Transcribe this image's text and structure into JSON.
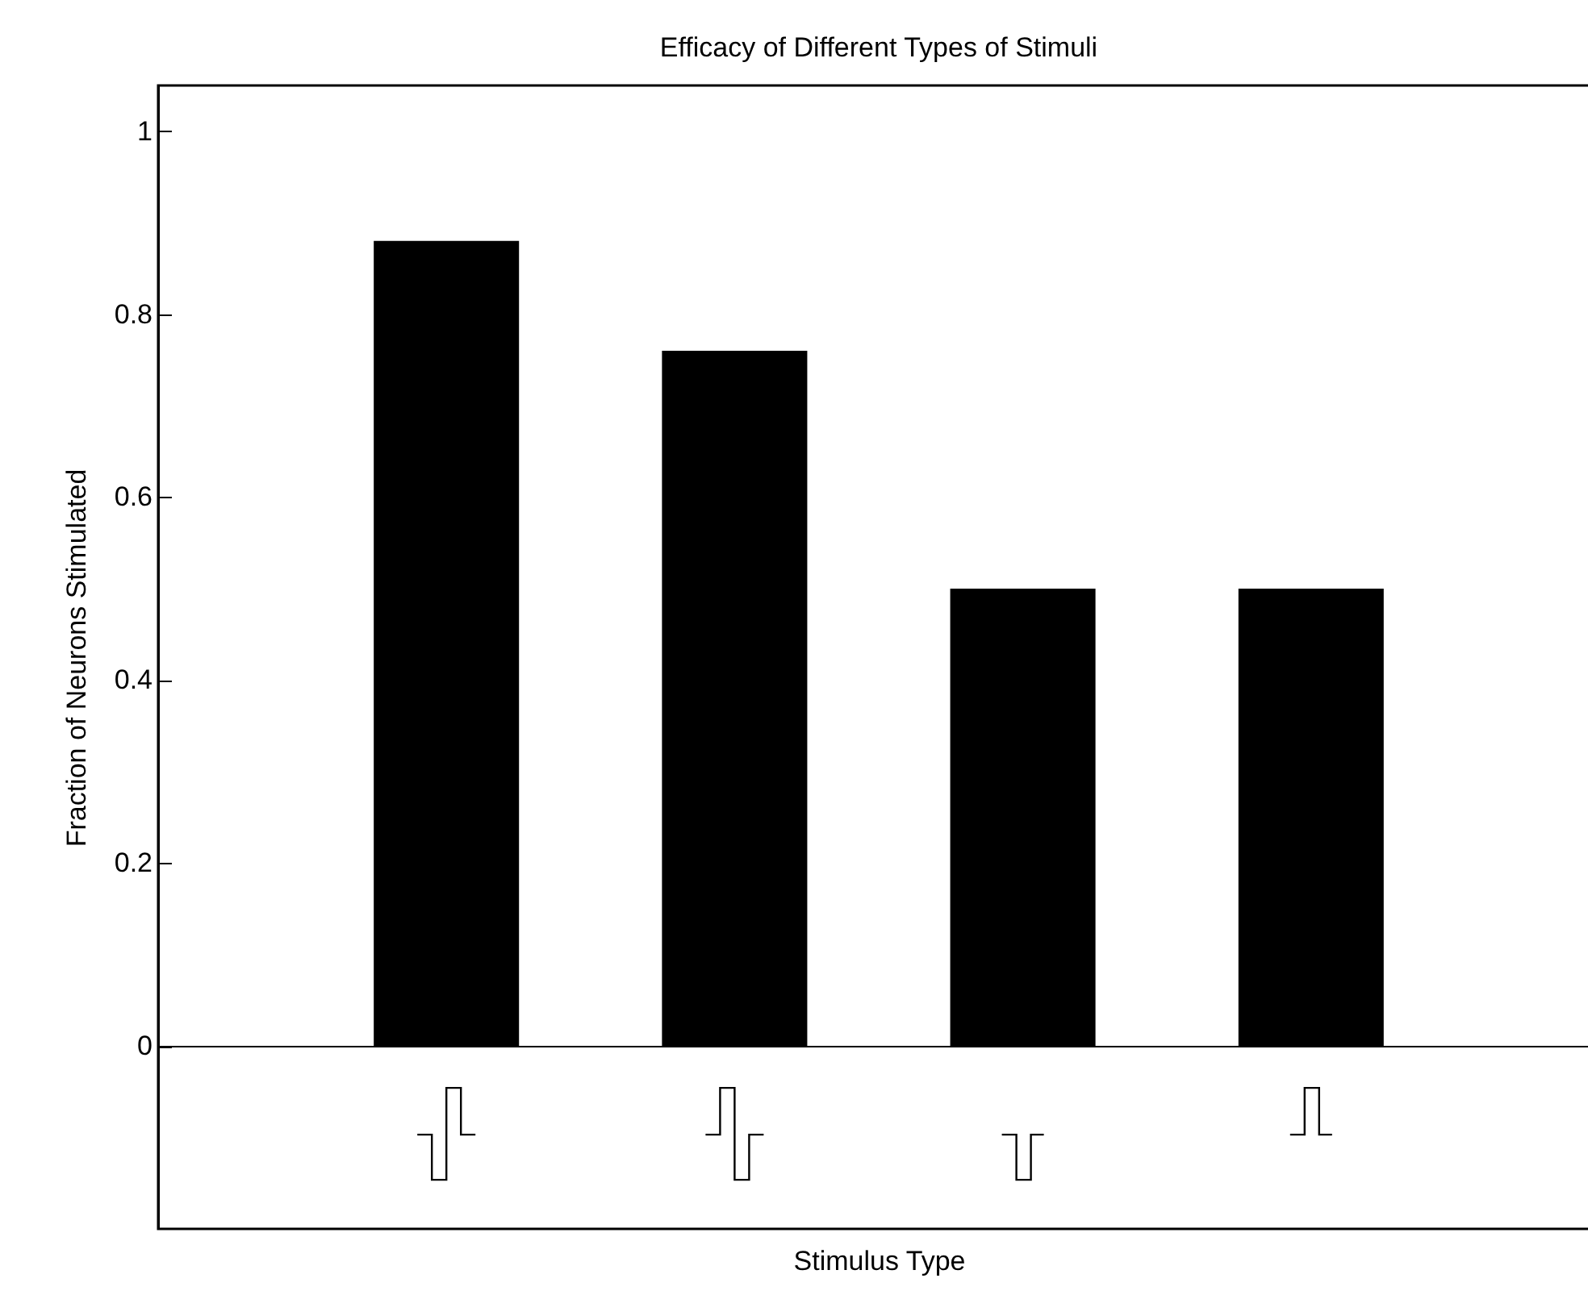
{
  "chart_data": {
    "type": "bar",
    "title": "Efficacy of Different Types of Stimuli",
    "xlabel": "Stimulus Type",
    "ylabel": "Fraction of Neurons Stimulated",
    "categories": [
      null,
      null,
      null,
      null
    ],
    "values": [
      0.88,
      0.76,
      0.5,
      0.5
    ],
    "color": "#000000",
    "ylim": [
      -0.2,
      1.05
    ],
    "yticks": [
      0,
      0.2,
      0.4,
      0.6,
      0.8,
      1
    ]
  }
}
